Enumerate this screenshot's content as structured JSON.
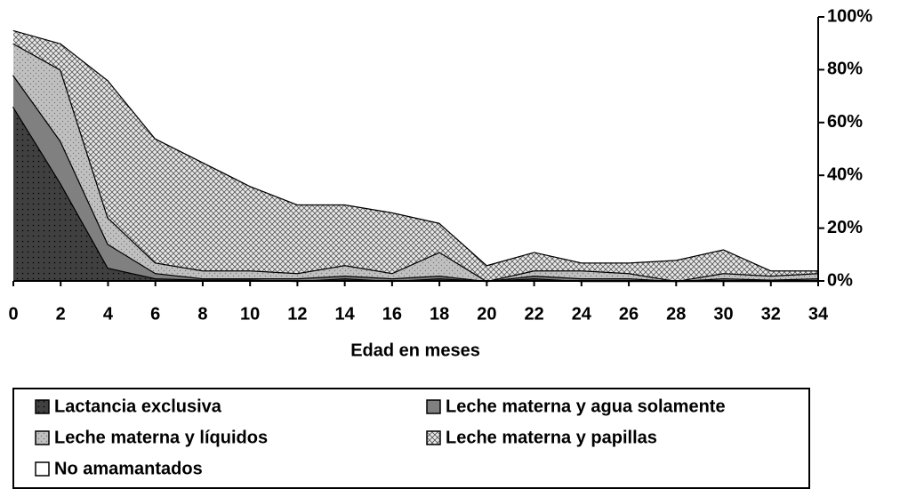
{
  "chart_data": {
    "type": "stacked-area",
    "x_label": "Edad en meses",
    "x": [
      0,
      2,
      4,
      6,
      8,
      10,
      12,
      14,
      16,
      18,
      20,
      22,
      24,
      26,
      28,
      30,
      32,
      34
    ],
    "xlim": [
      0,
      34
    ],
    "xticks": [
      0,
      2,
      4,
      6,
      8,
      10,
      12,
      14,
      16,
      18,
      20,
      22,
      24,
      26,
      28,
      30,
      32,
      34
    ],
    "ylim": [
      0,
      100
    ],
    "yticks": [
      {
        "value": 0,
        "label": "0%"
      },
      {
        "value": 20,
        "label": "20%"
      },
      {
        "value": 40,
        "label": "40%"
      },
      {
        "value": 60,
        "label": "60%"
      },
      {
        "value": 80,
        "label": "80%"
      },
      {
        "value": 100,
        "label": "100%"
      }
    ],
    "y_axis_side": "right",
    "series": [
      {
        "name": "Lactancia exclusiva",
        "color": "#404040",
        "values": [
          66,
          37,
          5,
          1,
          0.5,
          0.5,
          0,
          1,
          0,
          1,
          0,
          1,
          0,
          0,
          0,
          0,
          0,
          0
        ]
      },
      {
        "name": "Leche materna y agua solamente",
        "color": "#808080",
        "values": [
          12,
          16,
          9,
          2,
          0.5,
          0.5,
          1,
          1,
          1,
          1,
          0,
          1,
          1,
          1,
          0,
          1,
          0.5,
          1
        ]
      },
      {
        "name": "Leche materna y líquidos",
        "color": "#c0c0c0",
        "values": [
          12,
          27,
          10,
          4,
          3,
          3,
          2,
          4,
          2,
          9,
          0,
          2,
          3,
          2,
          0,
          2,
          1.5,
          2
        ]
      },
      {
        "name": "Leche materna y papillas",
        "color": "#e8e8e8",
        "values": [
          5,
          10,
          52,
          47,
          41,
          32,
          26,
          23,
          23,
          11,
          6,
          7,
          3,
          4,
          8,
          9,
          2,
          1
        ]
      },
      {
        "name": "No amamantados",
        "color": "#ffffff",
        "values": [
          5,
          10,
          24,
          46,
          55,
          64,
          71,
          71,
          74,
          78,
          94,
          89,
          93,
          93,
          92,
          88,
          96,
          96
        ]
      }
    ]
  }
}
